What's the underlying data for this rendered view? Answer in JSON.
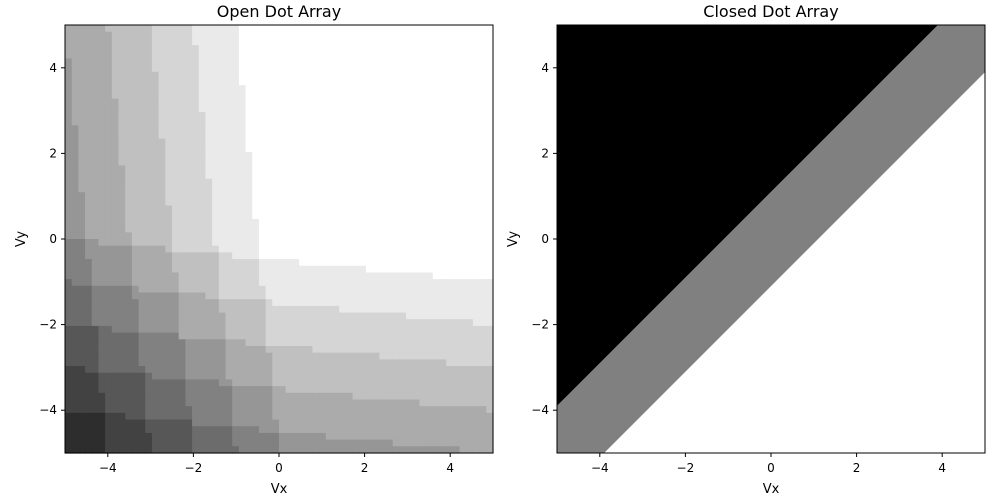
{
  "chart_data": [
    {
      "type": "heatmap",
      "title": "Open Dot Array",
      "xlabel": "Vx",
      "ylabel": "Vy",
      "xlim": [
        -5,
        5
      ],
      "ylim": [
        -5,
        5
      ],
      "x_ticks": [
        -4,
        -2,
        0,
        2,
        4
      ],
      "y_ticks": [
        -4,
        -2,
        0,
        2,
        4
      ],
      "colormap": "grayscale",
      "grid": false,
      "description": "Staircase of charge states; darkness increases toward negative Vx and Vy, with boundary lines tilted relative to the axes"
    },
    {
      "type": "heatmap",
      "title": "Closed Dot Array",
      "xlabel": "Vx",
      "ylabel": "Vy",
      "xlim": [
        -5,
        5
      ],
      "ylim": [
        -5,
        5
      ],
      "x_ticks": [
        -4,
        -2,
        0,
        2,
        4
      ],
      "y_ticks": [
        -4,
        -2,
        0,
        2,
        4
      ],
      "colormap": "grayscale",
      "grid": false,
      "regions": [
        {
          "color": "#000000",
          "boundary": "Vy > Vx + 1.1"
        },
        {
          "color": "#808080",
          "boundary": "Vx - 1.1 < Vy < Vx + 1.1"
        },
        {
          "color": "#ffffff",
          "boundary": "Vy < Vx - 1.1"
        }
      ]
    }
  ]
}
